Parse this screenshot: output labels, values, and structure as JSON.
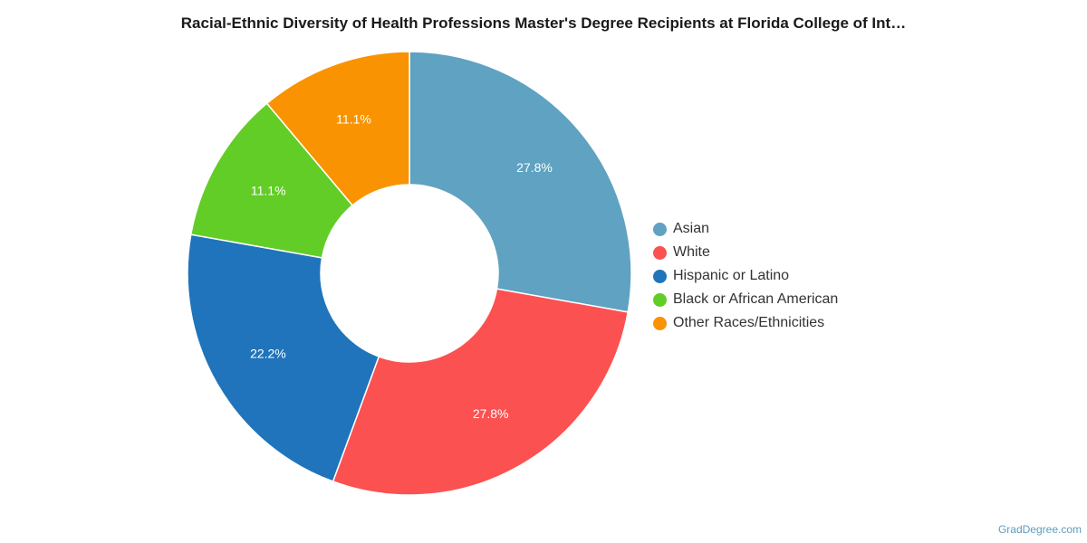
{
  "chart_data": {
    "type": "pie",
    "title": "Racial-Ethnic Diversity of Health Professions Master's Degree Recipients at Florida College of Int…",
    "donut": true,
    "legend_position": "right",
    "slices": [
      {
        "name": "Asian",
        "value": 27.8,
        "label": "27.8%",
        "color": "#5fa2c1"
      },
      {
        "name": "White",
        "value": 27.8,
        "label": "27.8%",
        "color": "#fc5151"
      },
      {
        "name": "Hispanic or Latino",
        "value": 22.2,
        "label": "22.2%",
        "color": "#1f74bb"
      },
      {
        "name": "Black or African American",
        "value": 11.1,
        "label": "11.1%",
        "color": "#62cd26"
      },
      {
        "name": "Other Races/Ethnicities",
        "value": 11.1,
        "label": "11.1%",
        "color": "#f99301"
      }
    ]
  },
  "credit": "GradDegree.com"
}
